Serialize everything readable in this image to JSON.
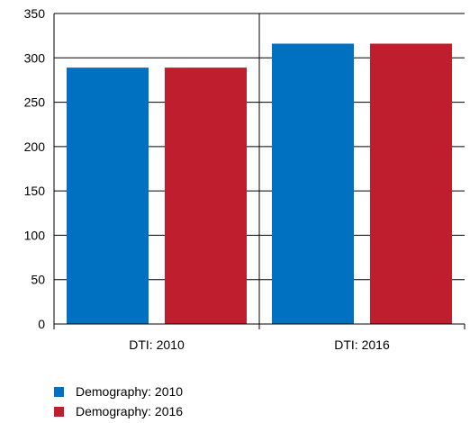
{
  "chart_data": {
    "type": "bar",
    "title": "",
    "xlabel": "",
    "ylabel": "",
    "ylim": [
      0,
      350
    ],
    "yticks": [
      0,
      50,
      100,
      150,
      200,
      250,
      300,
      350
    ],
    "categories": [
      "DTI: 2010",
      "DTI: 2016"
    ],
    "series": [
      {
        "name": "Demography: 2010",
        "values": [
          289,
          316
        ],
        "color": "#0070C0"
      },
      {
        "name": "Demography: 2016",
        "values": [
          289,
          316
        ],
        "color": "#BE1E2D"
      }
    ],
    "grid": "horizontal",
    "legend_position": "bottom-left"
  }
}
